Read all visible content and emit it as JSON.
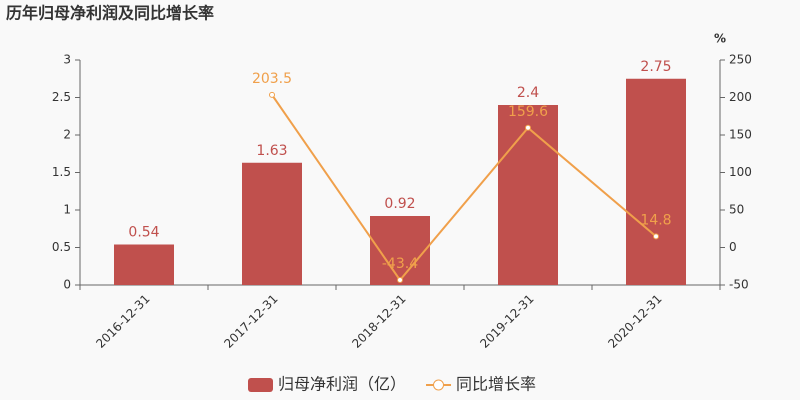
{
  "chart_data": {
    "type": "bar",
    "title": "历年归母净利润及同比增长率",
    "categories": [
      "2016-12-31",
      "2017-12-31",
      "2018-12-31",
      "2019-12-31",
      "2020-12-31"
    ],
    "series": [
      {
        "name": "归母净利润（亿）",
        "type": "bar",
        "color": "#c0504d",
        "values": [
          0.54,
          1.63,
          0.92,
          2.4,
          2.75
        ]
      },
      {
        "name": "同比增长率",
        "type": "line",
        "axis": "y2",
        "color": "#f0a04b",
        "values": [
          null,
          203.5,
          -43.4,
          159.6,
          14.8
        ]
      }
    ],
    "ylim": [
      0,
      3
    ],
    "yticks": [
      0,
      0.5,
      1,
      1.5,
      2,
      2.5,
      3
    ],
    "y2lim": [
      -50,
      250
    ],
    "y2ticks": [
      -50,
      0,
      50,
      100,
      150,
      200,
      250
    ],
    "y2label": "%",
    "grid": false,
    "legend": "bottom"
  }
}
